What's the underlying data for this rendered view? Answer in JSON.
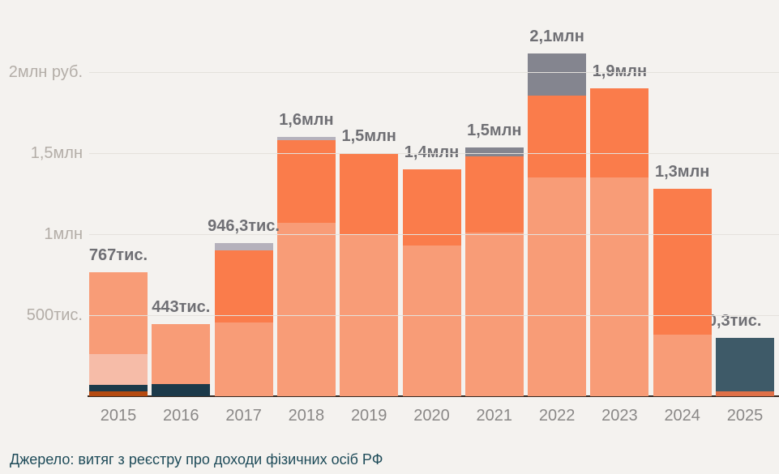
{
  "source_note": "Джерело: витяг з реєстру про доходи фізичних осіб РФ",
  "chart_data": {
    "type": "bar",
    "stacked": true,
    "title": "",
    "xlabel": "",
    "ylabel": "руб.",
    "unit": "тис. руб.",
    "ylim": [
      0,
      2400
    ],
    "grid": true,
    "legend": "none",
    "categories": [
      "2015",
      "2016",
      "2017",
      "2018",
      "2019",
      "2020",
      "2021",
      "2022",
      "2023",
      "2024",
      "2025"
    ],
    "y_ticks": [
      {
        "value": 500,
        "label": "500тис."
      },
      {
        "value": 1000,
        "label": "1млн"
      },
      {
        "value": 1500,
        "label": "1,5млн"
      },
      {
        "value": 2000,
        "label": "2млн руб."
      }
    ],
    "palette": {
      "salmon": "#f89c77",
      "orange": "#fa7c4b",
      "pink": "#f6bca8",
      "navy": "#1c3a4a",
      "rust": "#b54a10",
      "rust_light": "#e07048",
      "slate": "#3e5a68",
      "gray_dark": "#84858f",
      "gray_light": "#b5b1bc"
    },
    "bars": [
      {
        "year": "2015",
        "total": 767,
        "total_label": "767тис.",
        "halo": false,
        "segments": [
          {
            "color": "rust",
            "value": 28
          },
          {
            "color": "navy",
            "value": 41
          },
          {
            "color": "pink",
            "value": 193
          },
          {
            "color": "salmon",
            "value": 505
          }
        ]
      },
      {
        "year": "2016",
        "total": 443,
        "total_label": "443тис.",
        "halo": false,
        "segments": [
          {
            "color": "navy",
            "value": 75
          },
          {
            "color": "salmon",
            "value": 368
          }
        ]
      },
      {
        "year": "2017",
        "total": 946.3,
        "total_label": "946,3тис.",
        "halo": false,
        "segments": [
          {
            "color": "salmon",
            "value": 455
          },
          {
            "color": "orange",
            "value": 445
          },
          {
            "color": "gray_light",
            "value": 46.3
          }
        ]
      },
      {
        "year": "2018",
        "total": 1600,
        "total_label": "1,6млн",
        "halo": false,
        "segments": [
          {
            "color": "salmon",
            "value": 1070
          },
          {
            "color": "orange",
            "value": 510
          },
          {
            "color": "gray_light",
            "value": 20
          }
        ]
      },
      {
        "year": "2019",
        "total": 1500,
        "total_label": "1,5млн",
        "halo": false,
        "segments": [
          {
            "color": "salmon",
            "value": 1000
          },
          {
            "color": "orange",
            "value": 500
          }
        ]
      },
      {
        "year": "2020",
        "total": 1400,
        "total_label": "1,4млн",
        "halo": false,
        "segments": [
          {
            "color": "salmon",
            "value": 930
          },
          {
            "color": "orange",
            "value": 470
          }
        ]
      },
      {
        "year": "2021",
        "total": 1535,
        "total_label": "1,5млн",
        "halo": false,
        "segments": [
          {
            "color": "salmon",
            "value": 1010
          },
          {
            "color": "orange",
            "value": 470
          },
          {
            "color": "gray_dark",
            "value": 55
          }
        ]
      },
      {
        "year": "2022",
        "total": 2115,
        "total_label": "2,1млн",
        "halo": false,
        "segments": [
          {
            "color": "salmon",
            "value": 1350
          },
          {
            "color": "orange",
            "value": 505
          },
          {
            "color": "gray_dark",
            "value": 260
          }
        ]
      },
      {
        "year": "2023",
        "total": 1900,
        "total_label": "1,9млн",
        "halo": false,
        "segments": [
          {
            "color": "salmon",
            "value": 1350
          },
          {
            "color": "orange",
            "value": 550
          }
        ]
      },
      {
        "year": "2024",
        "total": 1280,
        "total_label": "1,3млн",
        "halo": false,
        "segments": [
          {
            "color": "salmon",
            "value": 380
          },
          {
            "color": "orange",
            "value": 900
          }
        ]
      },
      {
        "year": "2025",
        "total": 360.3,
        "total_label": "360,3тис.",
        "halo": true,
        "segments": [
          {
            "color": "rust_light",
            "value": 30
          },
          {
            "color": "slate",
            "value": 330.3
          }
        ]
      }
    ],
    "colors_meaning": {
      "background": "#f4f2ef",
      "gridline": "#e4e1dc",
      "axis_baseline": "#35271f",
      "value_label_text": "#6f6f74",
      "year_label_text": "#8a8887",
      "ytick_text": "#b3ada7",
      "source_text": "#1e4b59"
    }
  }
}
